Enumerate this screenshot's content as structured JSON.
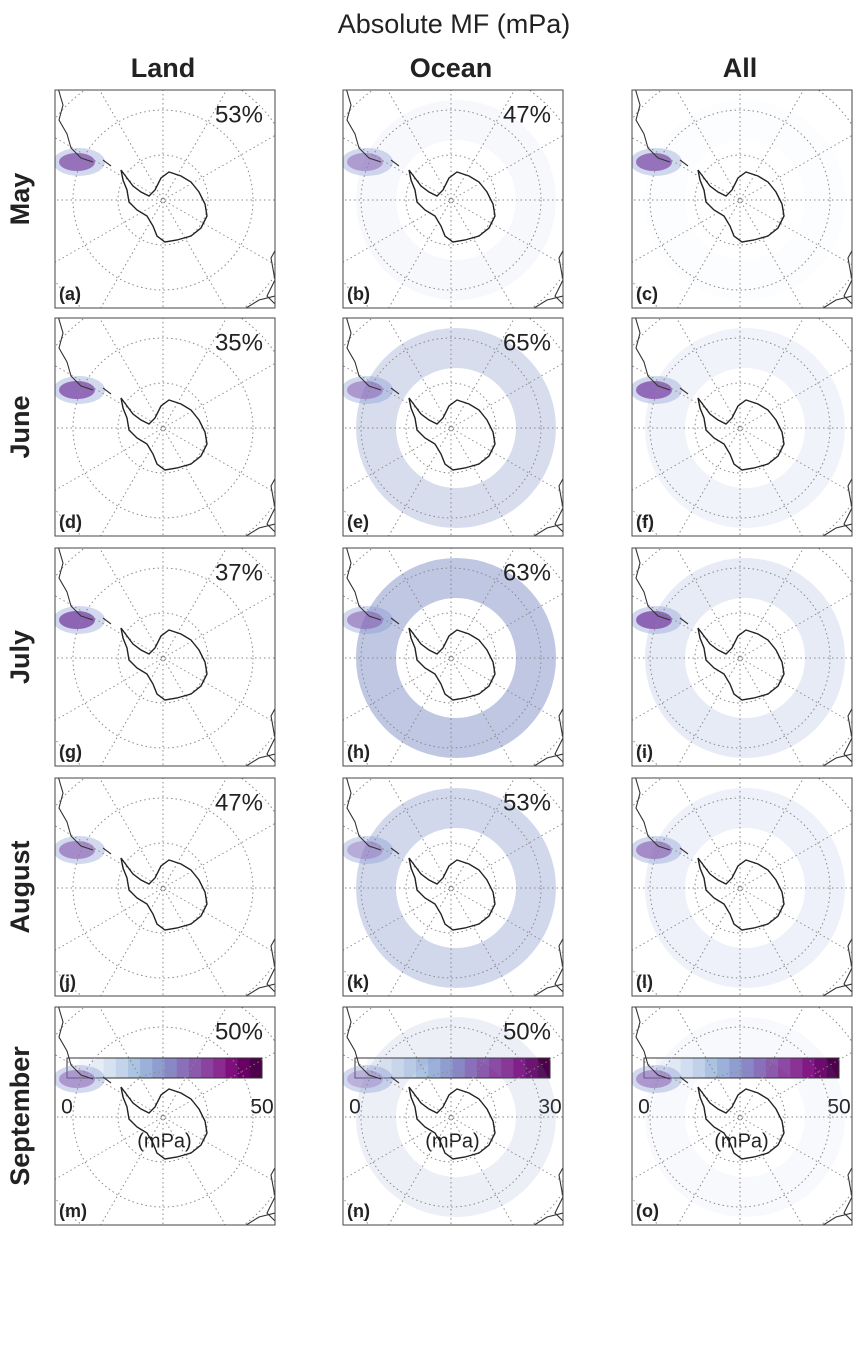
{
  "title": "Absolute MF (mPa)",
  "columns": [
    {
      "label": "Land",
      "colorbar": {
        "min": 0,
        "max": 50,
        "unit": "(mPa)"
      }
    },
    {
      "label": "Ocean",
      "colorbar": {
        "min": 0,
        "max": 30,
        "unit": "(mPa)"
      }
    },
    {
      "label": "All",
      "colorbar": {
        "min": 0,
        "max": 50,
        "unit": "(mPa)"
      }
    }
  ],
  "rows": [
    {
      "label": "May",
      "panels": [
        {
          "letter": "(a)",
          "share": "53%"
        },
        {
          "letter": "(b)",
          "share": "47%"
        },
        {
          "letter": "(c)"
        }
      ]
    },
    {
      "label": "June",
      "panels": [
        {
          "letter": "(d)",
          "share": "35%"
        },
        {
          "letter": "(e)",
          "share": "65%"
        },
        {
          "letter": "(f)"
        }
      ]
    },
    {
      "label": "July",
      "panels": [
        {
          "letter": "(g)",
          "share": "37%"
        },
        {
          "letter": "(h)",
          "share": "63%"
        },
        {
          "letter": "(i)"
        }
      ]
    },
    {
      "label": "August",
      "panels": [
        {
          "letter": "(j)",
          "share": "47%"
        },
        {
          "letter": "(k)",
          "share": "53%"
        },
        {
          "letter": "(l)"
        }
      ]
    },
    {
      "label": "September",
      "panels": [
        {
          "letter": "(m)",
          "share": "50%"
        },
        {
          "letter": "(n)",
          "share": "50%"
        },
        {
          "letter": "(o)"
        }
      ]
    }
  ]
}
